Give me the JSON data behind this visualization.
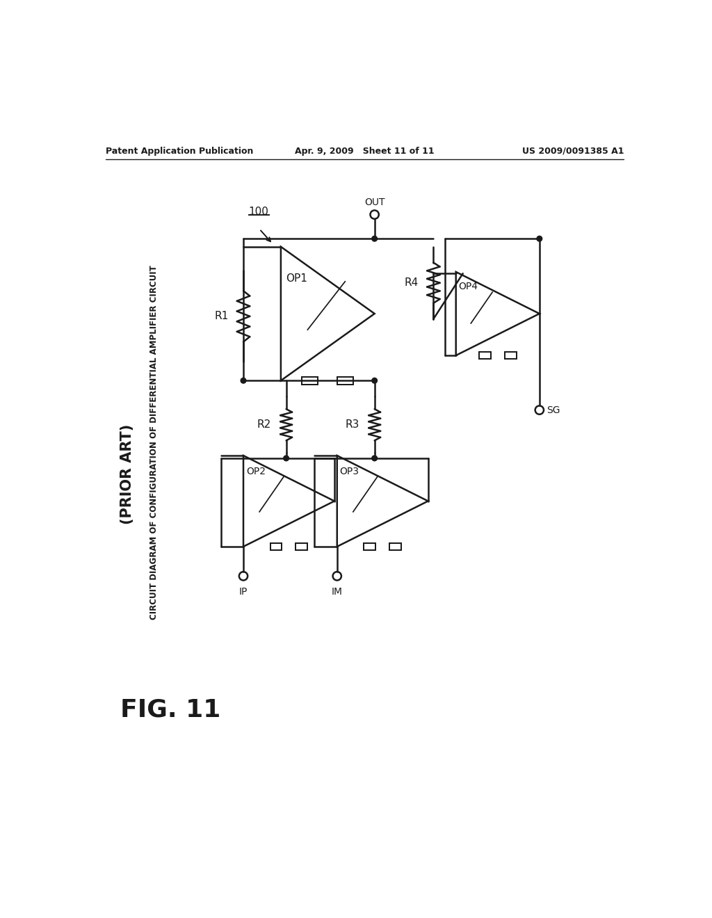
{
  "header_left": "Patent Application Publication",
  "header_center": "Apr. 9, 2009   Sheet 11 of 11",
  "header_right": "US 2009/0091385 A1",
  "title": "FIG. 11",
  "subtitle": "CIRCUIT DIAGRAM OF CONFIGURATION OF DIFFERENTIAL AMPLIFIER CIRCUIT",
  "prior_art": "(PRIOR ART)",
  "label_100": "100",
  "label_out": "OUT",
  "label_op1": "OP1",
  "label_op2": "OP2",
  "label_op3": "OP3",
  "label_op4": "OP4",
  "label_r1": "R1",
  "label_r2": "R2",
  "label_r3": "R3",
  "label_r4": "R4",
  "label_ip": "IP",
  "label_im": "IM",
  "label_sg": "SG",
  "bg_color": "#ffffff",
  "line_color": "#1a1a1a"
}
